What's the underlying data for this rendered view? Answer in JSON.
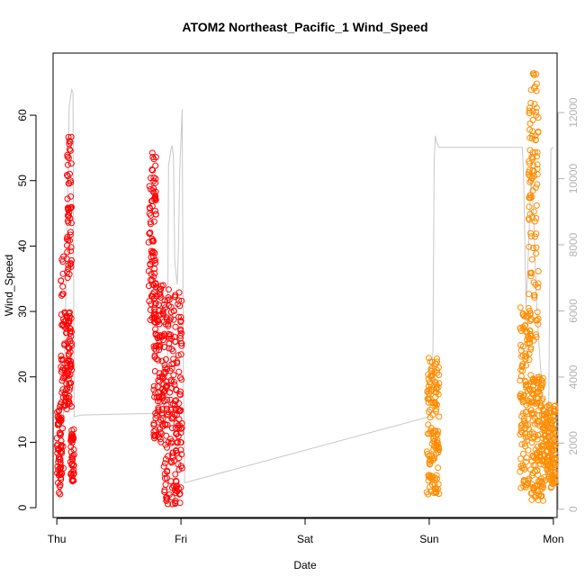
{
  "chart_data": {
    "type": "scatter",
    "title": "ATOM2 Northeast_Pacific_1 Wind_Speed",
    "xlabel": "Date",
    "ylabel": "Wind_Speed",
    "x_categories": [
      "Thu",
      "Fri",
      "Sat",
      "Sun",
      "Mon"
    ],
    "xlim": [
      -0.03,
      4.03
    ],
    "ylim": [
      -1.5,
      69.5
    ],
    "y_ticks": [
      0,
      10,
      20,
      30,
      40,
      50,
      60
    ],
    "y2_ticks": [
      0,
      2000,
      4000,
      6000,
      8000,
      10000,
      12000
    ],
    "y2lim": [
      -250,
      13800
    ],
    "grid": false,
    "legend": "none",
    "colors": {
      "series_1": "#ff0000",
      "series_2": "#ff8c00",
      "secondary_line": "#c8c8c8"
    },
    "series": [
      {
        "color": "#ff0000",
        "clusters": [
          {
            "x_start": 0.0,
            "x_end": 0.04,
            "y_min": 2.0,
            "y_max": 15.5
          },
          {
            "x_start": 0.03,
            "x_end": 0.06,
            "y_min": 5.0,
            "y_max": 38.5
          },
          {
            "x_start": 0.06,
            "x_end": 0.12,
            "y_min": 15.0,
            "y_max": 30.0
          },
          {
            "x_start": 0.08,
            "x_end": 0.12,
            "y_min": 35.0,
            "y_max": 57.5
          },
          {
            "x_start": 0.11,
            "x_end": 0.14,
            "y_min": 4.0,
            "y_max": 12.0
          },
          {
            "x_start": 0.74,
            "x_end": 0.8,
            "y_min": 28.0,
            "y_max": 54.5
          },
          {
            "x_start": 0.78,
            "x_end": 0.86,
            "y_min": 10.0,
            "y_max": 35.0
          },
          {
            "x_start": 0.86,
            "x_end": 1.01,
            "y_min": 0.5,
            "y_max": 33.5
          }
        ]
      },
      {
        "color": "#ff8c00",
        "clusters": [
          {
            "x_start": 2.98,
            "x_end": 3.08,
            "y_min": 2.0,
            "y_max": 23.0
          },
          {
            "x_start": 3.73,
            "x_end": 3.82,
            "y_min": 3.0,
            "y_max": 31.0
          },
          {
            "x_start": 3.8,
            "x_end": 3.88,
            "y_min": 25.0,
            "y_max": 66.5
          },
          {
            "x_start": 3.82,
            "x_end": 3.92,
            "y_min": 1.0,
            "y_max": 20.0
          },
          {
            "x_start": 3.92,
            "x_end": 4.02,
            "y_min": 3.0,
            "y_max": 16.0
          }
        ]
      }
    ],
    "secondary_line": {
      "color": "#c8c8c8",
      "x": [
        0.02,
        0.03,
        0.04,
        0.05,
        0.06,
        0.08,
        0.1,
        0.12,
        0.13,
        0.14,
        0.2,
        0.8,
        0.82,
        0.83,
        0.88,
        0.89,
        0.9,
        0.92,
        0.93,
        0.94,
        0.95,
        0.97,
        0.98,
        0.99,
        1.0,
        1.01,
        1.02,
        1.03,
        3.0,
        3.01,
        3.02,
        3.03,
        3.04,
        3.05,
        3.06,
        3.07,
        3.08,
        3.1,
        3.6,
        3.7,
        3.75,
        3.76,
        3.78,
        3.8,
        3.82,
        3.84,
        3.86,
        3.88,
        3.9,
        3.92,
        3.94,
        3.96,
        3.98,
        4.0
      ],
      "y2": [
        300,
        600,
        1200,
        2100,
        4200,
        8000,
        12200,
        12700,
        12600,
        2800,
        2850,
        2900,
        2950,
        2950,
        3100,
        3500,
        10400,
        10900,
        11000,
        10600,
        7500,
        6800,
        7900,
        10200,
        11200,
        12100,
        3900,
        800,
        2800,
        3200,
        3600,
        4900,
        10500,
        11300,
        11100,
        11000,
        10950,
        10950,
        10950,
        10950,
        10950,
        10100,
        6100,
        7900,
        10000,
        9000,
        6600,
        5200,
        4100,
        2000,
        1600,
        1700,
        10900,
        10950
      ]
    }
  }
}
